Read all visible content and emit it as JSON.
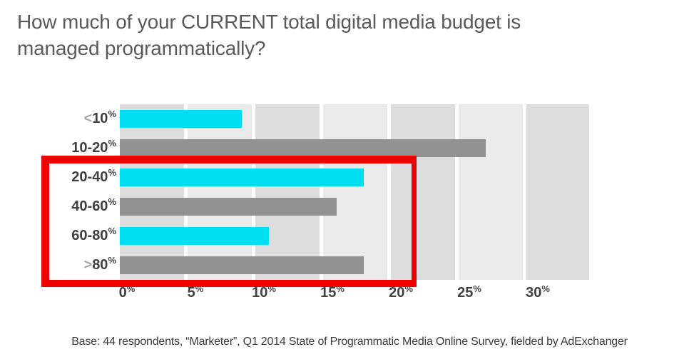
{
  "slide": {
    "title_line1": "How much of your CURRENT total digital media budget is",
    "title_line2": "managed programmatically?",
    "source_note": "Base: 44 respondents, “Marketer”, Q1 2014 State of Programmatic Media Online Survey, fielded by AdExchanger"
  },
  "chart_data": {
    "type": "bar",
    "orientation": "horizontal",
    "title": "How much of your CURRENT total digital media budget is managed programmatically?",
    "categories": [
      "<10%",
      "10-20%",
      "20-40%",
      "40-60%",
      "60-80%",
      ">80%"
    ],
    "values": [
      9,
      27,
      18,
      16,
      11,
      18
    ],
    "unit": "%",
    "xlim": [
      0,
      34.6
    ],
    "x_ticks": [
      "0%",
      "5%",
      "10%",
      "15%",
      "20%",
      "25%",
      "30%"
    ],
    "grid": "alternating light-gray vertical bands, one per 5% interval, separated by thin white gaps",
    "legend": "none",
    "rows": [
      {
        "prefix": "<",
        "label": "10",
        "sup": "%",
        "value": 9,
        "color_hex": "#00dff2"
      },
      {
        "prefix": "",
        "label": "10-20",
        "sup": "%",
        "value": 27,
        "color_hex": "#929292"
      },
      {
        "prefix": "",
        "label": "20-40",
        "sup": "%",
        "value": 18,
        "color_hex": "#00dff2"
      },
      {
        "prefix": "",
        "label": "40-60",
        "sup": "%",
        "value": 16,
        "color_hex": "#929292"
      },
      {
        "prefix": "",
        "label": "60-80",
        "sup": "%",
        "value": 11,
        "color_hex": "#00dff2"
      },
      {
        "prefix": ">",
        "label": "80",
        "sup": "%",
        "value": 18,
        "color_hex": "#929292"
      }
    ],
    "ticks": [
      {
        "label": "0",
        "sup": "%"
      },
      {
        "label": "5",
        "sup": "%"
      },
      {
        "label": "10",
        "sup": "%"
      },
      {
        "label": "15",
        "sup": "%"
      },
      {
        "label": "20",
        "sup": "%"
      },
      {
        "label": "25",
        "sup": "%"
      },
      {
        "label": "30",
        "sup": "%"
      }
    ],
    "annotation": {
      "type": "rectangle-outline",
      "highlights": [
        "20-40%",
        "40-60%",
        "60-80%",
        ">80%"
      ],
      "color_hex": "#ee0000"
    }
  },
  "colors": {
    "title_text": "#595a5c",
    "axis_text": "#404040",
    "muted_prefix": "#a6a6a6",
    "bar_cyan": "#00dff2",
    "bar_gray": "#929292",
    "band_dark": "#dddddd",
    "band_light": "#eaeaea",
    "highlight_red": "#ee0000",
    "source_text": "#3c3c3c"
  }
}
